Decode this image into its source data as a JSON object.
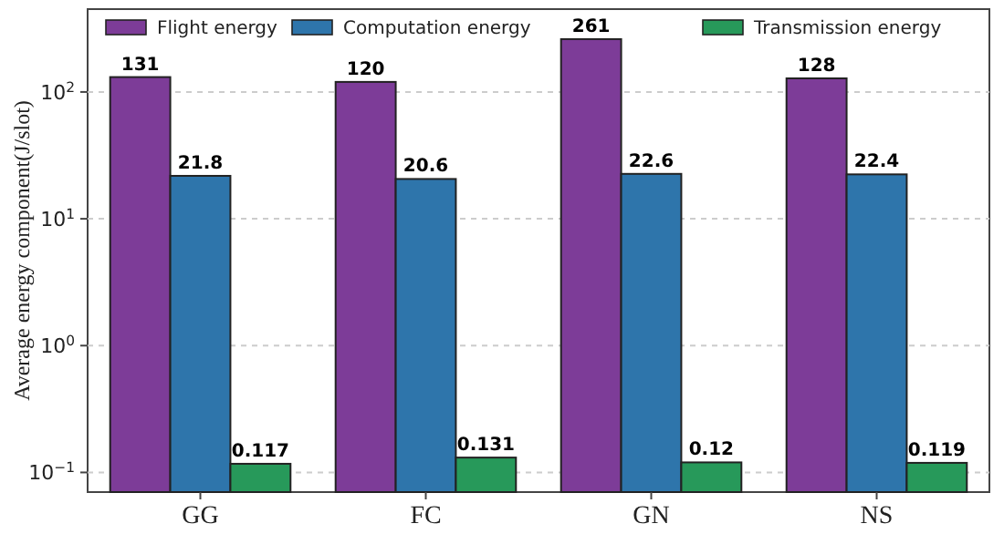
{
  "chart_data": {
    "type": "bar",
    "ylabel": "Average energy component(J/slot)",
    "categories": [
      "GG",
      "FC",
      "GN",
      "NS"
    ],
    "series": [
      {
        "name": "Flight energy",
        "color": "#7d3c98",
        "values": [
          131,
          120,
          261,
          128
        ]
      },
      {
        "name": "Computation energy",
        "color": "#2e75ab",
        "values": [
          21.8,
          20.6,
          22.6,
          22.4
        ]
      },
      {
        "name": "Transmission energy",
        "color": "#27995a",
        "values": [
          0.117,
          0.131,
          0.12,
          0.119
        ]
      }
    ],
    "log": true,
    "ylim": [
      0.07,
      450
    ],
    "yticks": [
      {
        "value": 0.1,
        "label": "10$^{−1}$"
      },
      {
        "value": 1,
        "label": "10$^{0}$"
      },
      {
        "value": 10,
        "label": "10$^{1}$"
      },
      {
        "value": 100,
        "label": "10$^{2}$"
      }
    ],
    "grid": "y",
    "legend": "top",
    "data_labels": true
  }
}
